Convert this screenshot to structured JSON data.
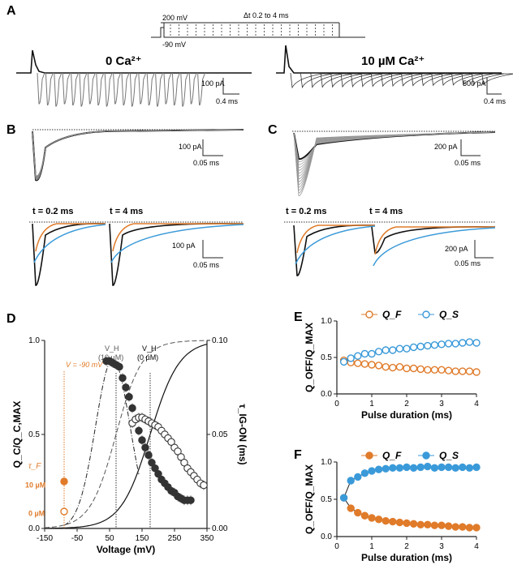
{
  "panels": {
    "A": "A",
    "B": "B",
    "C": "C",
    "D": "D",
    "E": "E",
    "F": "F"
  },
  "panel_a": {
    "protocol_high": "200 mV",
    "protocol_low": "-90 mV",
    "protocol_dt": "Δt 0.2 to 4 ms",
    "left_title": "0 Ca²⁺",
    "right_title": "10 µM Ca²⁺",
    "left_scale_y": "100 pA",
    "left_scale_x": "0.4 ms",
    "right_scale_y": "500 pA",
    "right_scale_x": "0.4 ms"
  },
  "panel_b": {
    "scale_y": "100 pA",
    "scale_x": "0.05 ms",
    "t1": "t = 0.2 ms",
    "t2": "t = 4 ms",
    "inset_scale_y": "100 pA",
    "inset_scale_x": "0.05 ms"
  },
  "panel_c": {
    "scale_y": "200 pA",
    "scale_x": "0.05 ms",
    "t1": "t = 0.2 ms",
    "t2": "t = 4 ms",
    "inset_scale_y": "200 pA",
    "inset_scale_x": "0.05 ms"
  },
  "colors": {
    "orange": "#e07b2a",
    "blue": "#3a9ad9",
    "black": "#222222",
    "gray": "#888888"
  },
  "chart_data": [
    {
      "id": "D",
      "type": "scatter",
      "xlabel": "Voltage (mV)",
      "ylabel": "Q_C/Q_C,MAX",
      "ylabel_right": "τ_IG-ON (ms)",
      "xlim": [
        -150,
        350
      ],
      "ylim": [
        0,
        1
      ],
      "ylim_right": [
        0,
        0.1
      ],
      "x_ticks": [
        -150,
        -50,
        50,
        150,
        250,
        350
      ],
      "y_ticks": [
        0.0,
        0.5,
        1.0
      ],
      "y_ticks_right": [
        0.0,
        0.05,
        0.1
      ],
      "annotations": {
        "vline_neg90": "V = -90 mV",
        "vh_10": "V_H",
        "vh_10_sub": "(10 µM)",
        "vh_0": "V_H",
        "vh_0_sub": "(0 µM)",
        "tauF": "τ_F",
        "tau_10": "10 µM",
        "tau_0": "0 µM"
      },
      "vh_positions": [
        70,
        175
      ],
      "tau_points": [
        {
          "x": -90,
          "y": 0.25,
          "filled": true
        },
        {
          "x": -90,
          "y": 0.09,
          "filled": false
        }
      ],
      "series": [
        {
          "name": "10 µM (filled)",
          "filled": true,
          "x": [
            40,
            50,
            60,
            70,
            80,
            90,
            100,
            110,
            120,
            130,
            140,
            150,
            160,
            170,
            180,
            190,
            200,
            210,
            220,
            230,
            240,
            250,
            260,
            270,
            280,
            290,
            300
          ],
          "y": [
            0.89,
            0.89,
            0.88,
            0.87,
            0.86,
            0.8,
            0.75,
            0.7,
            0.64,
            0.58,
            0.52,
            0.47,
            0.43,
            0.39,
            0.35,
            0.32,
            0.29,
            0.26,
            0.24,
            0.22,
            0.2,
            0.19,
            0.17,
            0.16,
            0.15,
            0.15,
            0.15
          ]
        },
        {
          "name": "0 µM (open)",
          "filled": false,
          "x": [
            120,
            130,
            140,
            150,
            160,
            170,
            180,
            190,
            200,
            210,
            220,
            230,
            240,
            250,
            260,
            270,
            280,
            290,
            300,
            310,
            320,
            330,
            340
          ],
          "y": [
            0.56,
            0.58,
            0.59,
            0.59,
            0.58,
            0.57,
            0.56,
            0.55,
            0.54,
            0.52,
            0.5,
            0.48,
            0.46,
            0.43,
            0.41,
            0.38,
            0.35,
            0.32,
            0.3,
            0.28,
            0.26,
            0.24,
            0.23
          ]
        }
      ]
    },
    {
      "id": "E",
      "type": "scatter",
      "xlabel": "Pulse duration (ms)",
      "ylabel": "Q_OFF/Q_MAX",
      "xlim": [
        0,
        4
      ],
      "ylim": [
        0,
        1
      ],
      "x_ticks": [
        0,
        1,
        2,
        3,
        4
      ],
      "y_ticks": [
        0.0,
        0.5,
        1.0
      ],
      "series": [
        {
          "name": "Q_F",
          "filled": false,
          "color": "#e07b2a",
          "x": [
            0.2,
            0.4,
            0.6,
            0.8,
            1.0,
            1.2,
            1.4,
            1.6,
            1.8,
            2.0,
            2.2,
            2.4,
            2.6,
            2.8,
            3.0,
            3.2,
            3.4,
            3.6,
            3.8,
            4.0
          ],
          "y": [
            0.46,
            0.43,
            0.42,
            0.41,
            0.4,
            0.39,
            0.37,
            0.36,
            0.37,
            0.35,
            0.35,
            0.34,
            0.33,
            0.33,
            0.33,
            0.32,
            0.31,
            0.31,
            0.31,
            0.3
          ]
        },
        {
          "name": "Q_S",
          "filled": false,
          "color": "#3a9ad9",
          "x": [
            0.2,
            0.4,
            0.6,
            0.8,
            1.0,
            1.2,
            1.4,
            1.6,
            1.8,
            2.0,
            2.2,
            2.4,
            2.6,
            2.8,
            3.0,
            3.2,
            3.4,
            3.6,
            3.8,
            4.0
          ],
          "y": [
            0.44,
            0.49,
            0.52,
            0.55,
            0.55,
            0.58,
            0.6,
            0.6,
            0.62,
            0.62,
            0.64,
            0.65,
            0.66,
            0.67,
            0.68,
            0.69,
            0.69,
            0.7,
            0.71,
            0.7
          ]
        }
      ]
    },
    {
      "id": "F",
      "type": "scatter",
      "xlabel": "Pulse duration (ms)",
      "ylabel": "Q_OFF/Q_MAX",
      "xlim": [
        0,
        4
      ],
      "ylim": [
        0,
        1
      ],
      "x_ticks": [
        0,
        1,
        2,
        3,
        4
      ],
      "y_ticks": [
        0.0,
        0.5,
        1.0
      ],
      "series": [
        {
          "name": "Q_F",
          "filled": true,
          "color": "#e07b2a",
          "x": [
            0.2,
            0.4,
            0.6,
            0.8,
            1.0,
            1.2,
            1.4,
            1.6,
            1.8,
            2.0,
            2.2,
            2.4,
            2.6,
            2.8,
            3.0,
            3.2,
            3.4,
            3.6,
            3.8,
            4.0
          ],
          "y": [
            0.52,
            0.38,
            0.32,
            0.28,
            0.25,
            0.23,
            0.21,
            0.2,
            0.19,
            0.18,
            0.17,
            0.16,
            0.16,
            0.15,
            0.15,
            0.14,
            0.13,
            0.13,
            0.12,
            0.12
          ]
        },
        {
          "name": "Q_S",
          "filled": true,
          "color": "#3a9ad9",
          "x": [
            0.2,
            0.4,
            0.6,
            0.8,
            1.0,
            1.2,
            1.4,
            1.6,
            1.8,
            2.0,
            2.2,
            2.4,
            2.6,
            2.8,
            3.0,
            3.2,
            3.4,
            3.6,
            3.8,
            4.0
          ],
          "y": [
            0.52,
            0.75,
            0.8,
            0.85,
            0.88,
            0.9,
            0.91,
            0.92,
            0.92,
            0.93,
            0.92,
            0.93,
            0.94,
            0.92,
            0.93,
            0.93,
            0.92,
            0.93,
            0.92,
            0.93
          ]
        }
      ]
    }
  ]
}
